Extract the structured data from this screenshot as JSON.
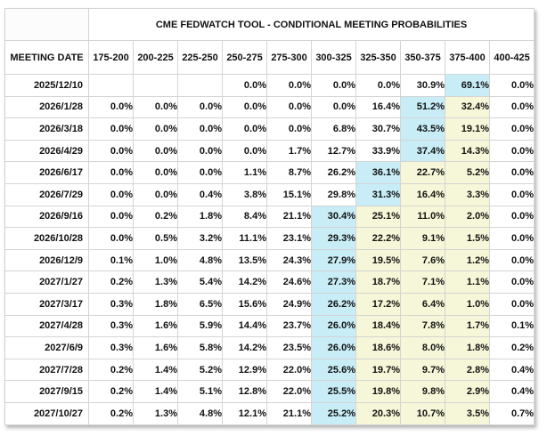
{
  "colors": {
    "highlight_blue": "#c8edf7",
    "highlight_yellow": "#f6f6d8",
    "grid_border": "#d4d4d4",
    "text": "#111111"
  },
  "table": {
    "title": "CME FEDWATCH TOOL - CONDITIONAL MEETING PROBABILITIES",
    "columns": [
      "MEETING DATE",
      "175-200",
      "200-225",
      "225-250",
      "250-275",
      "275-300",
      "300-325",
      "325-350",
      "350-375",
      "375-400",
      "400-425"
    ],
    "rows": [
      {
        "date": "2025/12/10",
        "values": [
          "",
          "",
          "",
          "0.0%",
          "0.0%",
          "0.0%",
          "0.0%",
          "30.9%",
          "69.1%",
          "0.0%"
        ],
        "hl": [
          "",
          "",
          "",
          "",
          "",
          "",
          "",
          "",
          "b",
          ""
        ]
      },
      {
        "date": "2026/1/28",
        "values": [
          "0.0%",
          "0.0%",
          "0.0%",
          "0.0%",
          "0.0%",
          "0.0%",
          "16.4%",
          "51.2%",
          "32.4%",
          "0.0%"
        ],
        "hl": [
          "",
          "",
          "",
          "",
          "",
          "",
          "",
          "b",
          "y",
          ""
        ]
      },
      {
        "date": "2026/3/18",
        "values": [
          "0.0%",
          "0.0%",
          "0.0%",
          "0.0%",
          "0.0%",
          "6.8%",
          "30.7%",
          "43.5%",
          "19.1%",
          "0.0%"
        ],
        "hl": [
          "",
          "",
          "",
          "",
          "",
          "",
          "",
          "b",
          "y",
          ""
        ]
      },
      {
        "date": "2026/4/29",
        "values": [
          "0.0%",
          "0.0%",
          "0.0%",
          "0.0%",
          "1.7%",
          "12.7%",
          "33.9%",
          "37.4%",
          "14.3%",
          "0.0%"
        ],
        "hl": [
          "",
          "",
          "",
          "",
          "",
          "",
          "",
          "b",
          "y",
          ""
        ]
      },
      {
        "date": "2026/6/17",
        "values": [
          "0.0%",
          "0.0%",
          "0.0%",
          "1.1%",
          "8.7%",
          "26.2%",
          "36.1%",
          "22.7%",
          "5.2%",
          "0.0%"
        ],
        "hl": [
          "",
          "",
          "",
          "",
          "",
          "",
          "b",
          "y",
          "y",
          ""
        ]
      },
      {
        "date": "2026/7/29",
        "values": [
          "0.0%",
          "0.0%",
          "0.4%",
          "3.8%",
          "15.1%",
          "29.8%",
          "31.3%",
          "16.4%",
          "3.3%",
          "0.0%"
        ],
        "hl": [
          "",
          "",
          "",
          "",
          "",
          "",
          "b",
          "y",
          "y",
          ""
        ]
      },
      {
        "date": "2026/9/16",
        "values": [
          "0.0%",
          "0.2%",
          "1.8%",
          "8.4%",
          "21.1%",
          "30.4%",
          "25.1%",
          "11.0%",
          "2.0%",
          "0.0%"
        ],
        "hl": [
          "",
          "",
          "",
          "",
          "",
          "b",
          "y",
          "y",
          "y",
          ""
        ]
      },
      {
        "date": "2026/10/28",
        "values": [
          "0.0%",
          "0.5%",
          "3.2%",
          "11.1%",
          "23.1%",
          "29.3%",
          "22.2%",
          "9.1%",
          "1.5%",
          "0.0%"
        ],
        "hl": [
          "",
          "",
          "",
          "",
          "",
          "b",
          "y",
          "y",
          "y",
          ""
        ]
      },
      {
        "date": "2026/12/9",
        "values": [
          "0.1%",
          "1.0%",
          "4.8%",
          "13.5%",
          "24.3%",
          "27.9%",
          "19.5%",
          "7.6%",
          "1.2%",
          "0.0%"
        ],
        "hl": [
          "",
          "",
          "",
          "",
          "",
          "b",
          "y",
          "y",
          "y",
          ""
        ]
      },
      {
        "date": "2027/1/27",
        "values": [
          "0.2%",
          "1.3%",
          "5.4%",
          "14.2%",
          "24.6%",
          "27.3%",
          "18.7%",
          "7.1%",
          "1.1%",
          "0.0%"
        ],
        "hl": [
          "",
          "",
          "",
          "",
          "",
          "b",
          "y",
          "y",
          "y",
          ""
        ]
      },
      {
        "date": "2027/3/17",
        "values": [
          "0.3%",
          "1.8%",
          "6.5%",
          "15.6%",
          "24.9%",
          "26.2%",
          "17.2%",
          "6.4%",
          "1.0%",
          "0.0%"
        ],
        "hl": [
          "",
          "",
          "",
          "",
          "",
          "b",
          "y",
          "y",
          "y",
          ""
        ]
      },
      {
        "date": "2027/4/28",
        "values": [
          "0.3%",
          "1.6%",
          "5.9%",
          "14.4%",
          "23.7%",
          "26.0%",
          "18.4%",
          "7.8%",
          "1.7%",
          "0.1%"
        ],
        "hl": [
          "",
          "",
          "",
          "",
          "",
          "b",
          "y",
          "y",
          "y",
          ""
        ]
      },
      {
        "date": "2027/6/9",
        "values": [
          "0.3%",
          "1.6%",
          "5.8%",
          "14.2%",
          "23.5%",
          "26.0%",
          "18.6%",
          "8.0%",
          "1.8%",
          "0.2%"
        ],
        "hl": [
          "",
          "",
          "",
          "",
          "",
          "b",
          "y",
          "y",
          "y",
          ""
        ]
      },
      {
        "date": "2027/7/28",
        "values": [
          "0.2%",
          "1.4%",
          "5.2%",
          "12.9%",
          "22.0%",
          "25.6%",
          "19.7%",
          "9.7%",
          "2.8%",
          "0.4%"
        ],
        "hl": [
          "",
          "",
          "",
          "",
          "",
          "b",
          "y",
          "y",
          "y",
          ""
        ]
      },
      {
        "date": "2027/9/15",
        "values": [
          "0.2%",
          "1.4%",
          "5.1%",
          "12.8%",
          "22.0%",
          "25.5%",
          "19.8%",
          "9.8%",
          "2.9%",
          "0.4%"
        ],
        "hl": [
          "",
          "",
          "",
          "",
          "",
          "b",
          "y",
          "y",
          "y",
          ""
        ]
      },
      {
        "date": "2027/10/27",
        "values": [
          "0.2%",
          "1.3%",
          "4.8%",
          "12.1%",
          "21.1%",
          "25.2%",
          "20.3%",
          "10.7%",
          "3.5%",
          "0.7%"
        ],
        "hl": [
          "",
          "",
          "",
          "",
          "",
          "b",
          "y",
          "y",
          "y",
          ""
        ]
      }
    ]
  }
}
